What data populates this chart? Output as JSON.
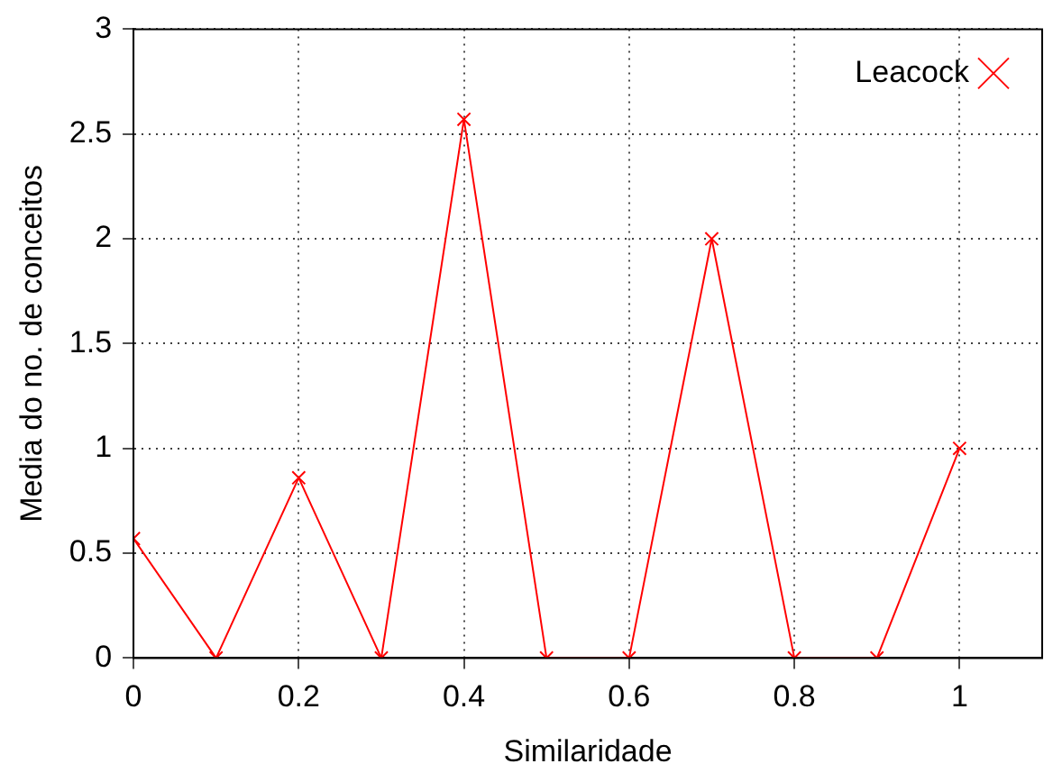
{
  "chart_data": {
    "type": "line",
    "xlabel": "Similaridade",
    "ylabel": "Media do no. de conceitos",
    "x": [
      0,
      0.1,
      0.2,
      0.3,
      0.4,
      0.5,
      0.6,
      0.7,
      0.8,
      0.9,
      1
    ],
    "series": [
      {
        "name": "Leacock",
        "color": "#ff0000",
        "values": [
          0.57,
          0,
          0.86,
          0,
          2.57,
          0,
          0,
          2.0,
          0,
          0,
          1.0
        ]
      }
    ],
    "xlim": [
      0,
      1.1
    ],
    "xticks": [
      0,
      0.2,
      0.4,
      0.6,
      0.8,
      1
    ],
    "ylim": [
      0,
      3
    ],
    "yticks": [
      0,
      0.5,
      1,
      1.5,
      2,
      2.5,
      3
    ],
    "grid": true,
    "legend": "top right",
    "marker": "cross",
    "line_style": "solid"
  }
}
